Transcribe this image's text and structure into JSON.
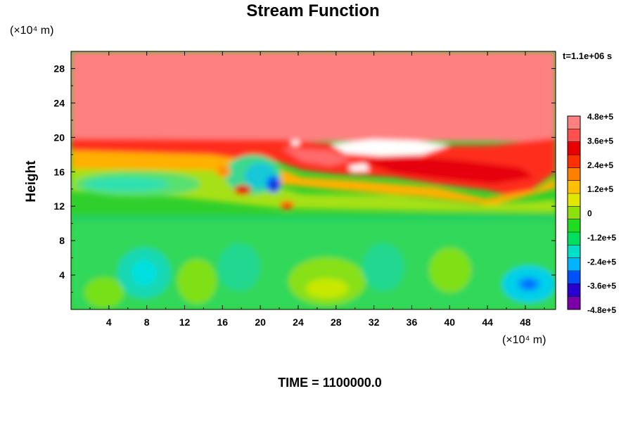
{
  "chart_data": {
    "type": "heatmap",
    "title": "Stream Function",
    "ylabel": "Height",
    "xlabel": "",
    "x_unit_label": "(×10⁴ m)",
    "y_unit_label": "(×10⁴ m)",
    "time_stamp": "t=1.1e+06 s",
    "footer": "TIME = 1100000.0",
    "xlim": [
      0,
      51.2
    ],
    "ylim": [
      0,
      30
    ],
    "x_ticks": [
      "4",
      "8",
      "12",
      "16",
      "20",
      "24",
      "28",
      "32",
      "36",
      "40",
      "44",
      "48"
    ],
    "x_tick_values": [
      4,
      8,
      12,
      16,
      20,
      24,
      28,
      32,
      36,
      40,
      44,
      48
    ],
    "y_ticks": [
      "4",
      "8",
      "12",
      "16",
      "20",
      "24",
      "28"
    ],
    "y_tick_values": [
      4,
      8,
      12,
      16,
      20,
      24,
      28
    ],
    "colorbar": {
      "min": -480000,
      "max": 480000,
      "labels": [
        "4.8e+5",
        "3.6e+5",
        "2.4e+5",
        "1.2e+5",
        "0",
        "-1.2e+5",
        "-2.4e+5",
        "-3.6e+5",
        "-4.8e+5"
      ],
      "label_values": [
        480000,
        360000,
        240000,
        120000,
        0,
        -120000,
        -240000,
        -360000,
        -480000
      ],
      "colors": [
        "#7a00a8",
        "#2800d0",
        "#0050ff",
        "#00b4ff",
        "#00e0c8",
        "#00e060",
        "#20dc20",
        "#90e010",
        "#e0e800",
        "#ffc000",
        "#ff8000",
        "#ff3000",
        "#e80000",
        "#ff5050",
        "#ff8080"
      ]
    },
    "regions": [
      {
        "desc": "upper saturated layer",
        "x": [
          0,
          51.2
        ],
        "y": [
          20.5,
          30
        ],
        "value": 480000
      },
      {
        "desc": "max plateau",
        "x": [
          30,
          36
        ],
        "y": [
          17.5,
          19.5
        ],
        "value": 520000
      },
      {
        "desc": "strong positive band",
        "x": [
          0,
          51.2
        ],
        "y": [
          15,
          20
        ],
        "value": 330000
      },
      {
        "desc": "negative vortex",
        "x": [
          21.5,
          21.5
        ],
        "y": [
          14.5,
          14.5
        ],
        "value": -300000
      },
      {
        "desc": "negative cell lower right",
        "x": [
          48,
          48
        ],
        "y": [
          2.8,
          2.8
        ],
        "value": -220000
      },
      {
        "desc": "near zero lower layer",
        "x": [
          0,
          51.2
        ],
        "y": [
          0,
          10.5
        ],
        "value": -60000
      }
    ]
  }
}
